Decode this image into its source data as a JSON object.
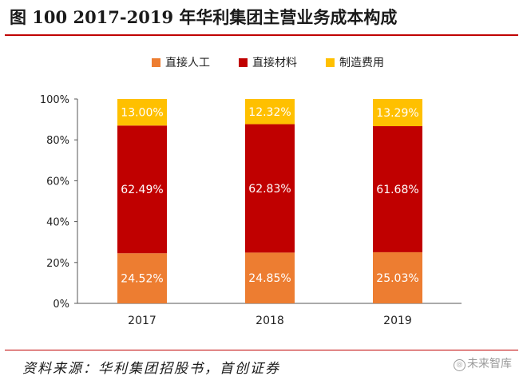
{
  "figure": {
    "title": "图 100 2017-2019 年华利集团主营业务成本构成",
    "source": "资料来源：华利集团招股书，首创证券",
    "watermark": "未来智库"
  },
  "chart_data": {
    "type": "bar",
    "stacked": true,
    "percent": true,
    "categories": [
      "2017",
      "2018",
      "2019"
    ],
    "series": [
      {
        "name": "直接人工",
        "color": "#ed7d31",
        "values": [
          24.52,
          24.85,
          25.03
        ],
        "labels": [
          "24.52%",
          "24.85%",
          "25.03%"
        ]
      },
      {
        "name": "直接材料",
        "color": "#c00000",
        "values": [
          62.49,
          62.83,
          61.68
        ],
        "labels": [
          "62.49%",
          "62.83%",
          "61.68%"
        ]
      },
      {
        "name": "制造费用",
        "color": "#ffc000",
        "values": [
          13.0,
          12.32,
          13.29
        ],
        "labels": [
          "13.00%",
          "12.32%",
          "13.29%"
        ]
      }
    ],
    "ylim": [
      0,
      100
    ],
    "yticks": [
      "0%",
      "20%",
      "40%",
      "60%",
      "80%",
      "100%"
    ],
    "grid": false,
    "legend_position": "top-center"
  }
}
